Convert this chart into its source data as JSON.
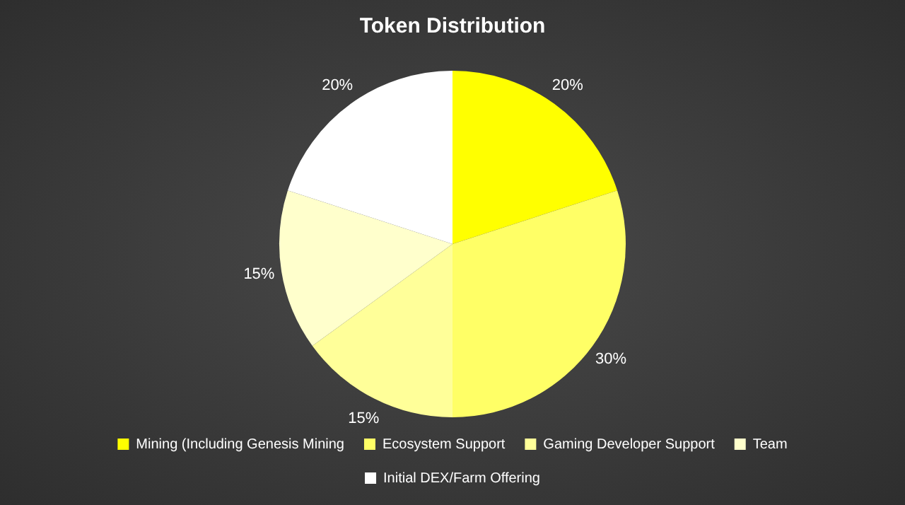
{
  "chart_data": {
    "type": "pie",
    "title": "Token Distribution",
    "categories": [
      "Mining (Including Genesis Mining",
      "Ecosystem Support",
      "Gaming Developer Support",
      "Team",
      "Initial DEX/Farm Offering"
    ],
    "values": [
      20,
      30,
      15,
      15,
      20
    ],
    "value_labels": [
      "20%",
      "30%",
      "15%",
      "15%",
      "20%"
    ],
    "colors": [
      "#ffff00",
      "#ffff66",
      "#ffff99",
      "#ffffcc",
      "#ffffff"
    ],
    "legend": "bottom"
  }
}
